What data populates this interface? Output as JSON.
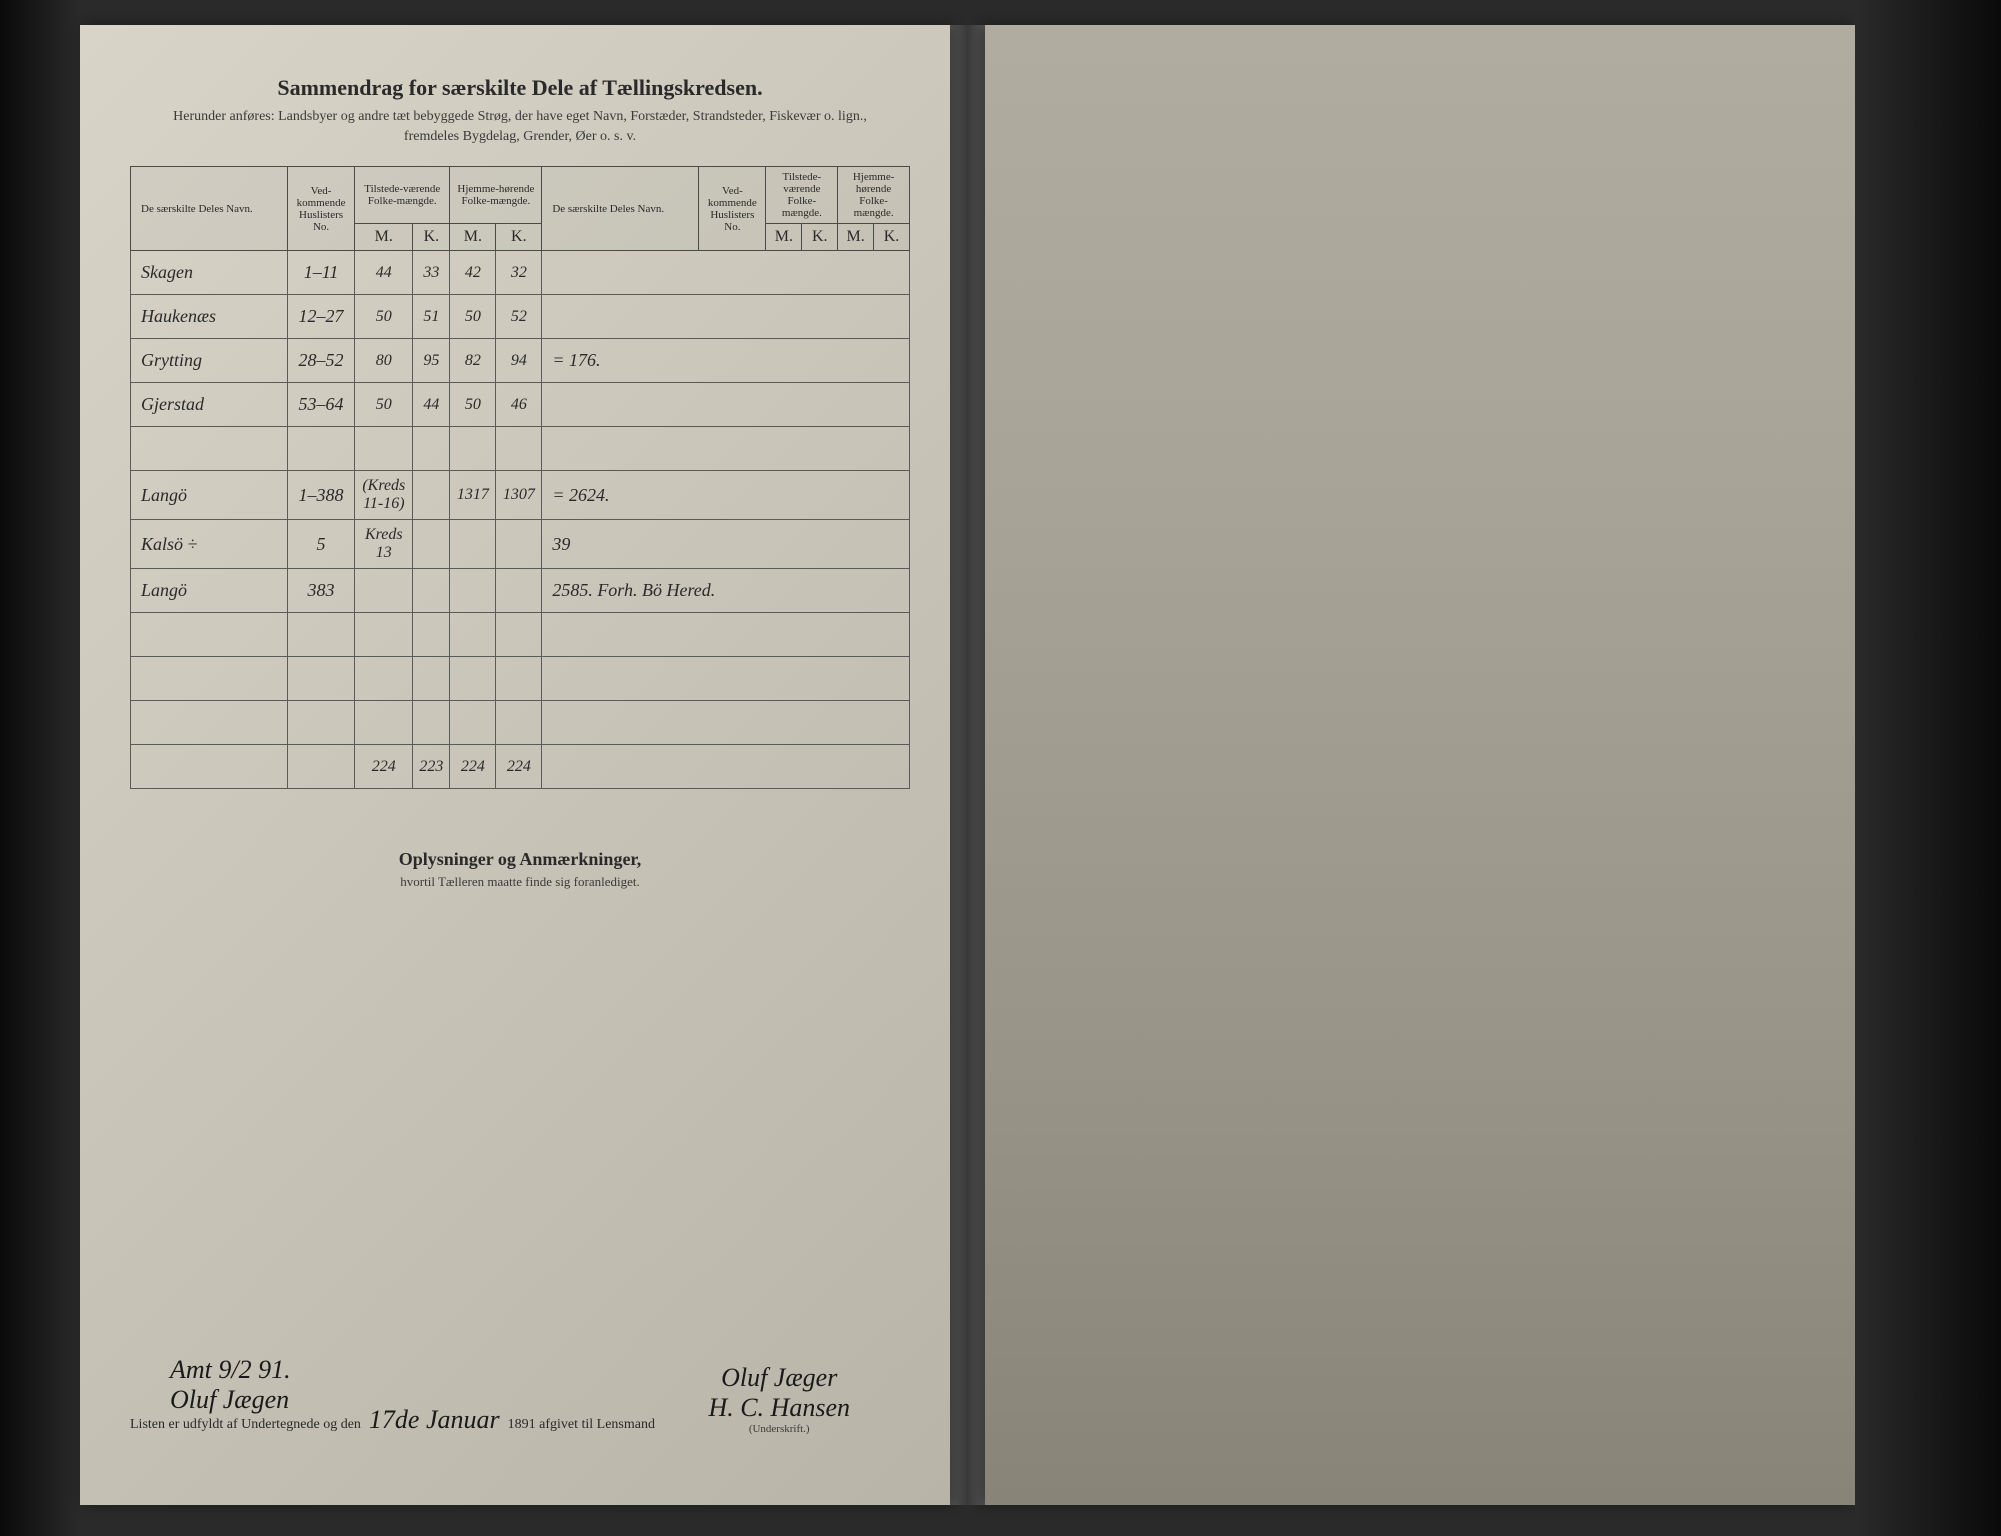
{
  "header": {
    "title": "Sammendrag for særskilte Dele af Tællingskredsen.",
    "subtitle1": "Herunder anføres: Landsbyer og andre tæt bebyggede Strøg, der have eget Navn, Forstæder, Strandsteder, Fiskevær o. lign.,",
    "subtitle2": "fremdeles Bygdelag, Grender, Øer o. s. v."
  },
  "columns": {
    "name": "De særskilte Deles Navn.",
    "huslister": "Ved-kommende Huslisters No.",
    "tilstede": "Tilstede-værende Folke-mængde.",
    "hjemme": "Hjemme-hørende Folke-mængde.",
    "m": "M.",
    "k": "K."
  },
  "rows": [
    {
      "name": "Skagen",
      "hus": "1–11",
      "tm": "44",
      "tk": "33",
      "hm": "42",
      "hk": "32",
      "extra": ""
    },
    {
      "name": "Haukenæs",
      "hus": "12–27",
      "tm": "50",
      "tk": "51",
      "hm": "50",
      "hk": "52",
      "extra": ""
    },
    {
      "name": "Grytting",
      "hus": "28–52",
      "tm": "80",
      "tk": "95",
      "hm": "82",
      "hk": "94",
      "extra": "= 176."
    },
    {
      "name": "Gjerstad",
      "hus": "53–64",
      "tm": "50",
      "tk": "44",
      "hm": "50",
      "hk": "46",
      "extra": ""
    },
    {
      "name": "",
      "hus": "",
      "tm": "",
      "tk": "",
      "hm": "",
      "hk": "",
      "extra": ""
    },
    {
      "name": "Langö",
      "hus": "1–388",
      "tm": "(Kreds 11-16)",
      "tk": "",
      "hm": "1317",
      "hk": "1307",
      "extra": "= 2624."
    },
    {
      "name": "Kalsö ÷",
      "hus": "5",
      "tm": "Kreds 13",
      "tk": "",
      "hm": "",
      "hk": "",
      "extra": "39"
    },
    {
      "name": "Langö",
      "hus": "383",
      "tm": "",
      "tk": "",
      "hm": "",
      "hk": "",
      "extra": "2585. Forh. Bö Hered."
    },
    {
      "name": "",
      "hus": "",
      "tm": "",
      "tk": "",
      "hm": "",
      "hk": "",
      "extra": ""
    },
    {
      "name": "",
      "hus": "",
      "tm": "",
      "tk": "",
      "hm": "",
      "hk": "",
      "extra": ""
    },
    {
      "name": "",
      "hus": "",
      "tm": "",
      "tk": "",
      "hm": "",
      "hk": "",
      "extra": ""
    }
  ],
  "totals": {
    "tm": "224",
    "tk": "223",
    "hm": "224",
    "hk": "224"
  },
  "remarks": {
    "title": "Oplysninger og Anmærkninger,",
    "sub": "hvortil Tælleren maatte finde sig foranlediget."
  },
  "footer": {
    "prefix": "Listen er udfyldt af Undertegnede og den",
    "date": "17de Januar",
    "year": "1891 afgivet til Lensmand",
    "sig1": "Oluf Jæger",
    "sig2": "H. C. Hansen",
    "underskrift": "(Underskrift.)",
    "bottom1": "Amt 9/2 91.",
    "bottom2": "Oluf Jægen"
  }
}
